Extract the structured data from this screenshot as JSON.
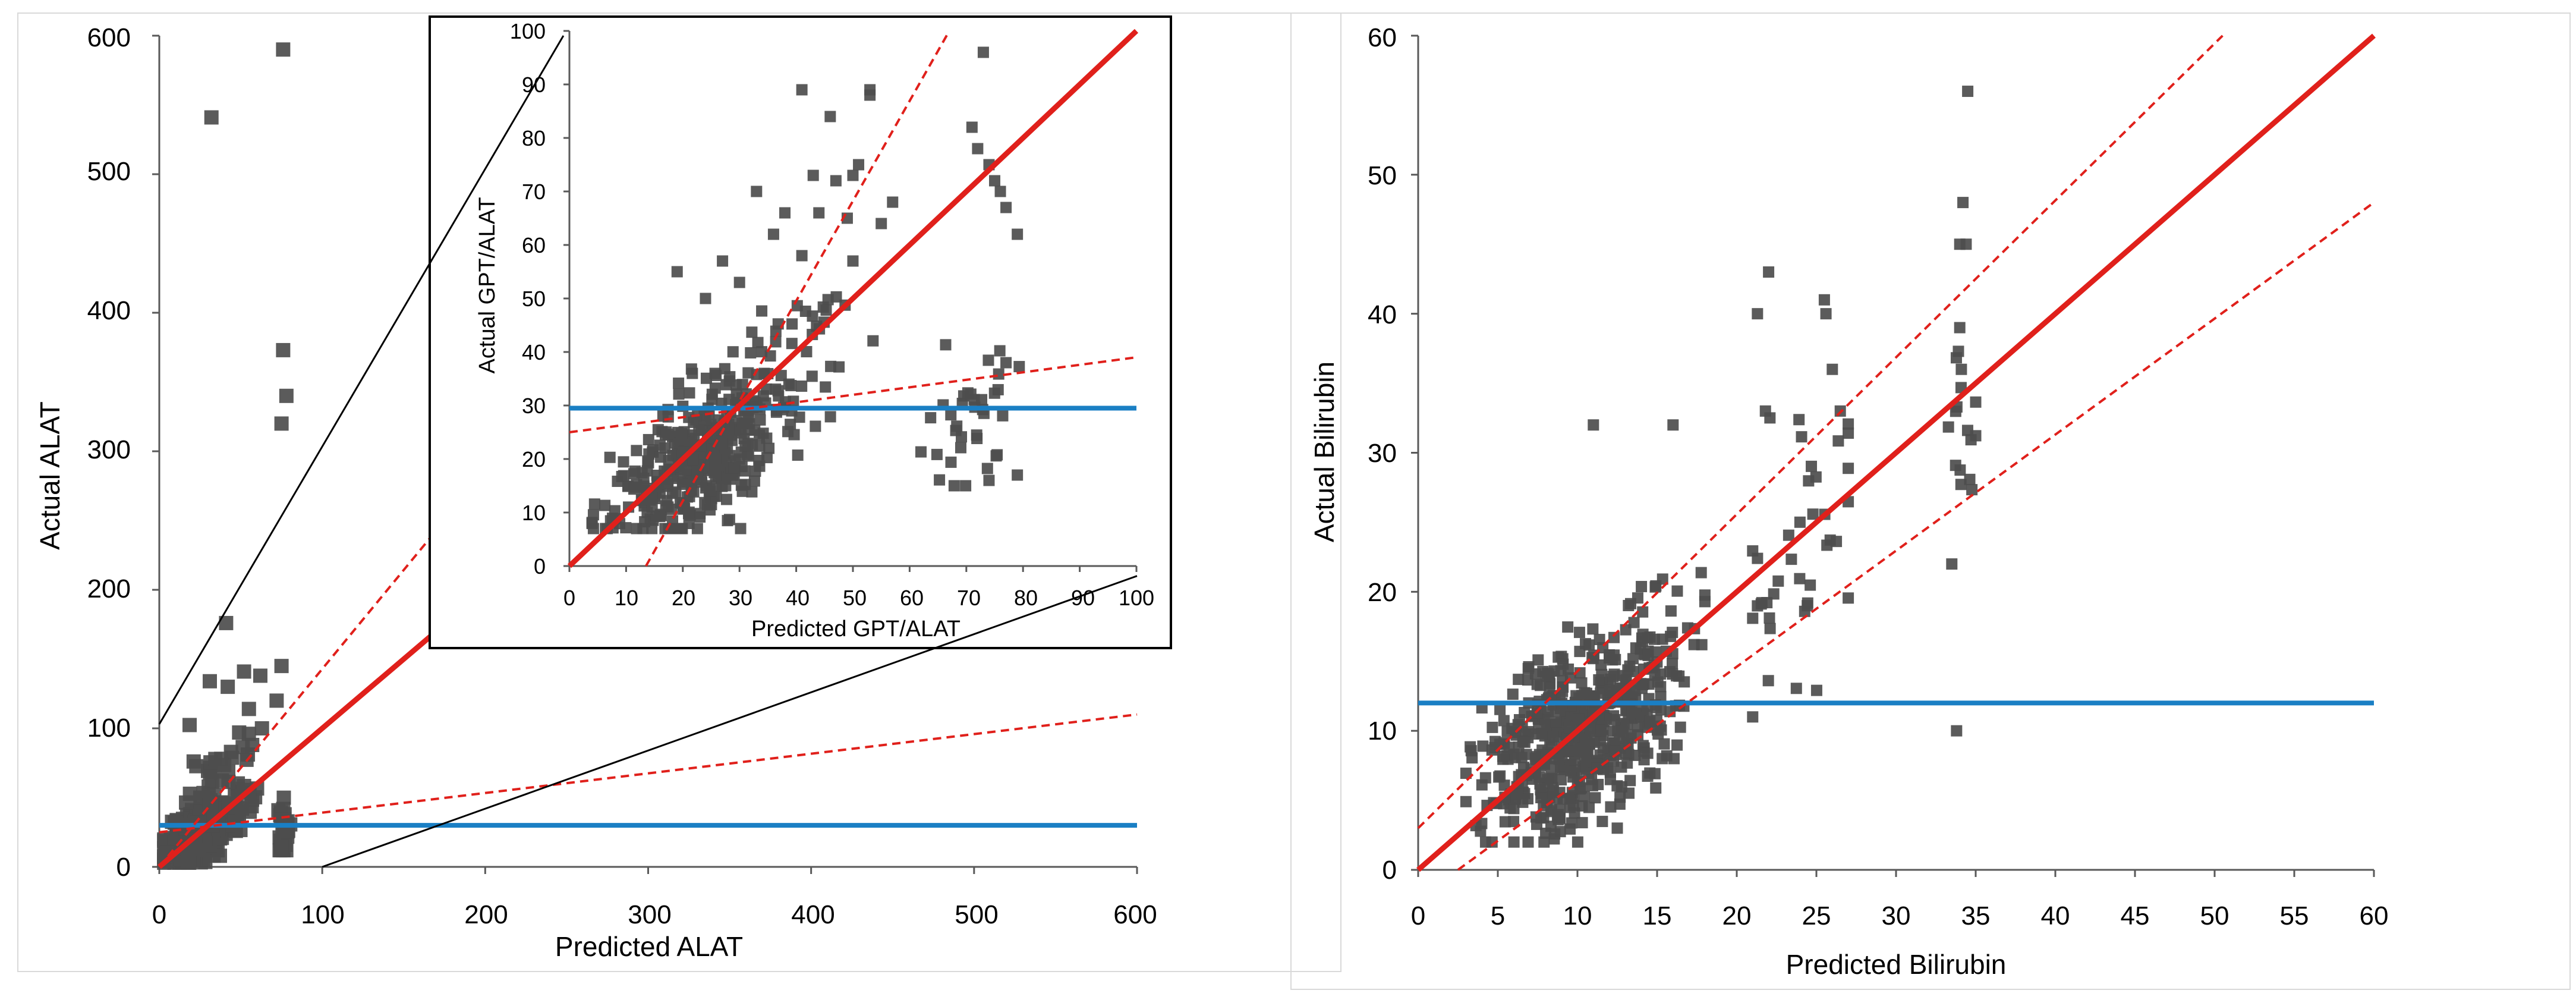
{
  "colors": {
    "fit_line": "#e0201b",
    "ci_line": "#e0201b",
    "reference_line": "#1a7fc4",
    "points": "#4d4d4d",
    "axis": "#595959",
    "inset_border": "#000000",
    "panel_border": "#d9d9d9"
  },
  "chart_data": [
    {
      "type": "scatter",
      "id": "alat",
      "title": "",
      "xlabel": "Predicted ALAT",
      "ylabel": "Actual ALAT",
      "xlim": [
        0,
        600
      ],
      "ylim": [
        0,
        600
      ],
      "xticks": [
        "0",
        "100",
        "200",
        "300",
        "400",
        "500",
        "600"
      ],
      "yticks": [
        "0",
        "100",
        "200",
        "300",
        "400",
        "500",
        "600"
      ],
      "lines": {
        "fit": [
          [
            0,
            0
          ],
          [
            600,
            600
          ]
        ],
        "ci_upper": [
          [
            0,
            0
          ],
          [
            210,
            300
          ]
        ],
        "ci_lower": [
          [
            0,
            25
          ],
          [
            600,
            110
          ]
        ],
        "reference_y": 30
      },
      "zoom_connectors": [
        [
          [
            0,
            103
          ],
          [
            248,
            600
          ]
        ],
        [
          [
            100,
            0
          ],
          [
            600,
            210
          ]
        ]
      ],
      "seed": 11,
      "clusters": [
        {
          "n": 300,
          "cx": 25,
          "cy": 25,
          "sx": 10,
          "sy": 10,
          "xmin": 3,
          "xmax": 60,
          "ymin": 3,
          "ymax": 62
        },
        {
          "n": 50,
          "cx": 40,
          "cy": 55,
          "sx": 12,
          "sy": 20,
          "xmin": 15,
          "xmax": 60,
          "ymin": 30,
          "ymax": 140
        },
        {
          "n": 35,
          "cx": 76,
          "cy": 28,
          "sx": 2.5,
          "sy": 12,
          "xmin": 66,
          "xmax": 82,
          "ymin": 12,
          "ymax": 80
        }
      ],
      "points": [
        [
          32,
          541
        ],
        [
          76,
          590
        ],
        [
          76,
          373
        ],
        [
          78,
          340
        ],
        [
          75,
          320
        ],
        [
          41,
          176
        ],
        [
          52,
          141
        ],
        [
          62,
          138
        ],
        [
          31,
          134
        ],
        [
          42,
          130
        ],
        [
          75,
          145
        ],
        [
          72,
          120
        ],
        [
          55,
          114
        ],
        [
          63,
          100
        ],
        [
          49,
          97
        ],
        [
          57,
          88
        ],
        [
          44,
          83
        ],
        [
          38,
          78
        ]
      ]
    },
    {
      "type": "scatter",
      "id": "inset",
      "title": "",
      "xlabel": "Predicted GPT/ALAT",
      "ylabel": "Actual GPT/ALAT",
      "xlim": [
        0,
        100
      ],
      "ylim": [
        0,
        100
      ],
      "xticks": [
        "0",
        "10",
        "20",
        "30",
        "40",
        "50",
        "60",
        "70",
        "80",
        "90",
        "100"
      ],
      "yticks": [
        "0",
        "10",
        "20",
        "30",
        "40",
        "50",
        "60",
        "70",
        "80",
        "90",
        "100"
      ],
      "lines": {
        "fit": [
          [
            0,
            0
          ],
          [
            100,
            100
          ]
        ],
        "ci_upper": [
          [
            13.5,
            0
          ],
          [
            67,
            100
          ]
        ],
        "ci_lower": [
          [
            0,
            25
          ],
          [
            100,
            39
          ]
        ],
        "reference_y": 29.5
      },
      "seed": 23,
      "clusters": [
        {
          "n": 380,
          "cx": 22,
          "cy": 19,
          "sx": 7,
          "sy": 6,
          "xmin": 4,
          "xmax": 40,
          "ymin": 7,
          "ymax": 36
        },
        {
          "n": 60,
          "cx": 35,
          "cy": 36,
          "sx": 8,
          "sy": 9,
          "xmin": 20,
          "xmax": 55,
          "ymin": 20,
          "ymax": 58
        },
        {
          "n": 35,
          "cx": 71,
          "cy": 27,
          "sx": 5,
          "sy": 8,
          "xmin": 62,
          "xmax": 80,
          "ymin": 15,
          "ymax": 42
        }
      ],
      "points": [
        [
          41,
          89
        ],
        [
          53,
          88
        ],
        [
          53,
          89
        ],
        [
          46,
          84
        ],
        [
          47,
          72
        ],
        [
          73,
          96
        ],
        [
          71,
          82
        ],
        [
          72,
          78
        ],
        [
          76,
          70
        ],
        [
          74,
          75
        ],
        [
          77,
          67
        ],
        [
          75,
          72
        ],
        [
          79,
          62
        ],
        [
          33,
          70
        ],
        [
          50,
          73
        ],
        [
          51,
          75
        ],
        [
          38,
          66
        ],
        [
          44,
          66
        ],
        [
          49,
          65
        ],
        [
          55,
          64
        ],
        [
          41,
          58
        ],
        [
          19,
          55
        ],
        [
          27,
          57
        ],
        [
          36,
          62
        ],
        [
          43,
          73
        ],
        [
          57,
          68
        ],
        [
          77,
          38
        ],
        [
          79,
          17
        ],
        [
          74,
          16
        ],
        [
          50,
          57
        ],
        [
          24,
          50
        ],
        [
          30,
          53
        ]
      ]
    },
    {
      "type": "scatter",
      "id": "bilirubin",
      "title": "",
      "xlabel": "Predicted Bilirubin",
      "ylabel": "Actual Bilirubin",
      "xlim": [
        0,
        60
      ],
      "ylim": [
        0,
        60
      ],
      "xticks": [
        "0",
        "5",
        "10",
        "15",
        "20",
        "25",
        "30",
        "35",
        "40",
        "45",
        "50",
        "55",
        "60"
      ],
      "yticks": [
        "0",
        "10",
        "20",
        "30",
        "40",
        "50",
        "60"
      ],
      "lines": {
        "fit": [
          [
            0,
            0
          ],
          [
            60,
            60
          ]
        ],
        "ci_upper": [
          [
            0,
            3
          ],
          [
            50.5,
            60
          ]
        ],
        "ci_lower": [
          [
            2.5,
            0
          ],
          [
            60,
            48
          ]
        ],
        "reference_y": 12
      },
      "seed": 37,
      "clusters": [
        {
          "n": 520,
          "cx": 10,
          "cy": 10,
          "sx": 2.8,
          "sy": 3.2,
          "xmin": 3,
          "xmax": 18,
          "ymin": 2,
          "ymax": 20
        },
        {
          "n": 45,
          "cx": 15,
          "cy": 15,
          "sx": 1.5,
          "sy": 3.5,
          "xmin": 12,
          "xmax": 18,
          "ymin": 8,
          "ymax": 24
        },
        {
          "n": 40,
          "cx": 24,
          "cy": 22,
          "sx": 2.2,
          "sy": 5,
          "xmin": 21,
          "xmax": 27,
          "ymin": 11,
          "ymax": 35
        },
        {
          "n": 15,
          "cx": 34,
          "cy": 32,
          "sx": 0.6,
          "sy": 5,
          "xmin": 33,
          "xmax": 35,
          "ymin": 22,
          "ymax": 40
        }
      ],
      "points": [
        [
          34.5,
          56
        ],
        [
          34.2,
          48
        ],
        [
          34.4,
          45
        ],
        [
          34,
          45
        ],
        [
          34,
          39
        ],
        [
          34.1,
          36
        ],
        [
          22,
          43
        ],
        [
          21.3,
          40
        ],
        [
          25.5,
          41
        ],
        [
          25.6,
          40
        ],
        [
          26,
          36
        ],
        [
          26.5,
          33
        ],
        [
          33.5,
          22
        ],
        [
          33.8,
          10
        ],
        [
          11,
          32
        ],
        [
          16,
          32
        ],
        [
          12.5,
          3
        ],
        [
          21.8,
          33
        ]
      ]
    }
  ]
}
